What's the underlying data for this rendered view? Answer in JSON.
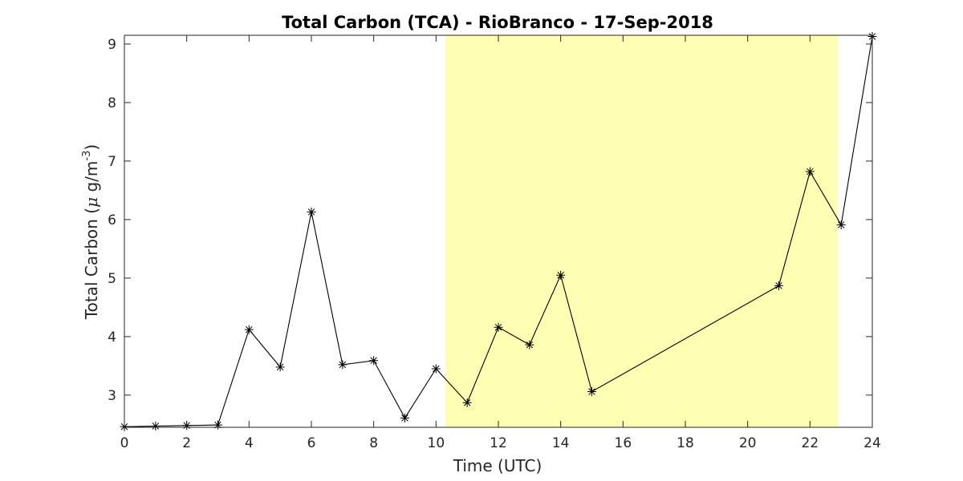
{
  "chart_data": {
    "type": "line",
    "title": "Total Carbon (TCA) - RioBranco - 17-Sep-2018",
    "xlabel": "Time (UTC)",
    "ylabel": {
      "prefix": "Total Carbon (",
      "mu": "μ",
      "unit": " g/m",
      "exponent": "-3",
      "suffix": ")"
    },
    "xlim": [
      0,
      24
    ],
    "ylim": [
      2.45,
      9.15
    ],
    "xticks": [
      0,
      2,
      4,
      6,
      8,
      10,
      12,
      14,
      16,
      18,
      20,
      22,
      24
    ],
    "yticks": [
      3,
      4,
      5,
      6,
      7,
      8,
      9
    ],
    "highlight_band": {
      "x_start": 10.3,
      "x_end": 22.9,
      "color": "#ffffb3"
    },
    "series": [
      {
        "marker": "asterisk",
        "color": "#000000",
        "x": [
          0,
          1,
          2,
          3,
          4,
          5,
          6,
          7,
          8,
          9,
          10,
          11,
          12,
          13,
          14,
          15,
          21,
          22,
          23,
          24
        ],
        "y": [
          2.46,
          2.47,
          2.48,
          2.49,
          4.12,
          3.48,
          6.13,
          3.52,
          3.59,
          2.61,
          3.45,
          2.87,
          4.16,
          3.86,
          5.05,
          3.06,
          4.87,
          6.82,
          5.91,
          9.13
        ]
      }
    ],
    "grid": false,
    "colors": {
      "axis": "#262626",
      "line": "#000000",
      "band": "#ffffb3"
    }
  }
}
